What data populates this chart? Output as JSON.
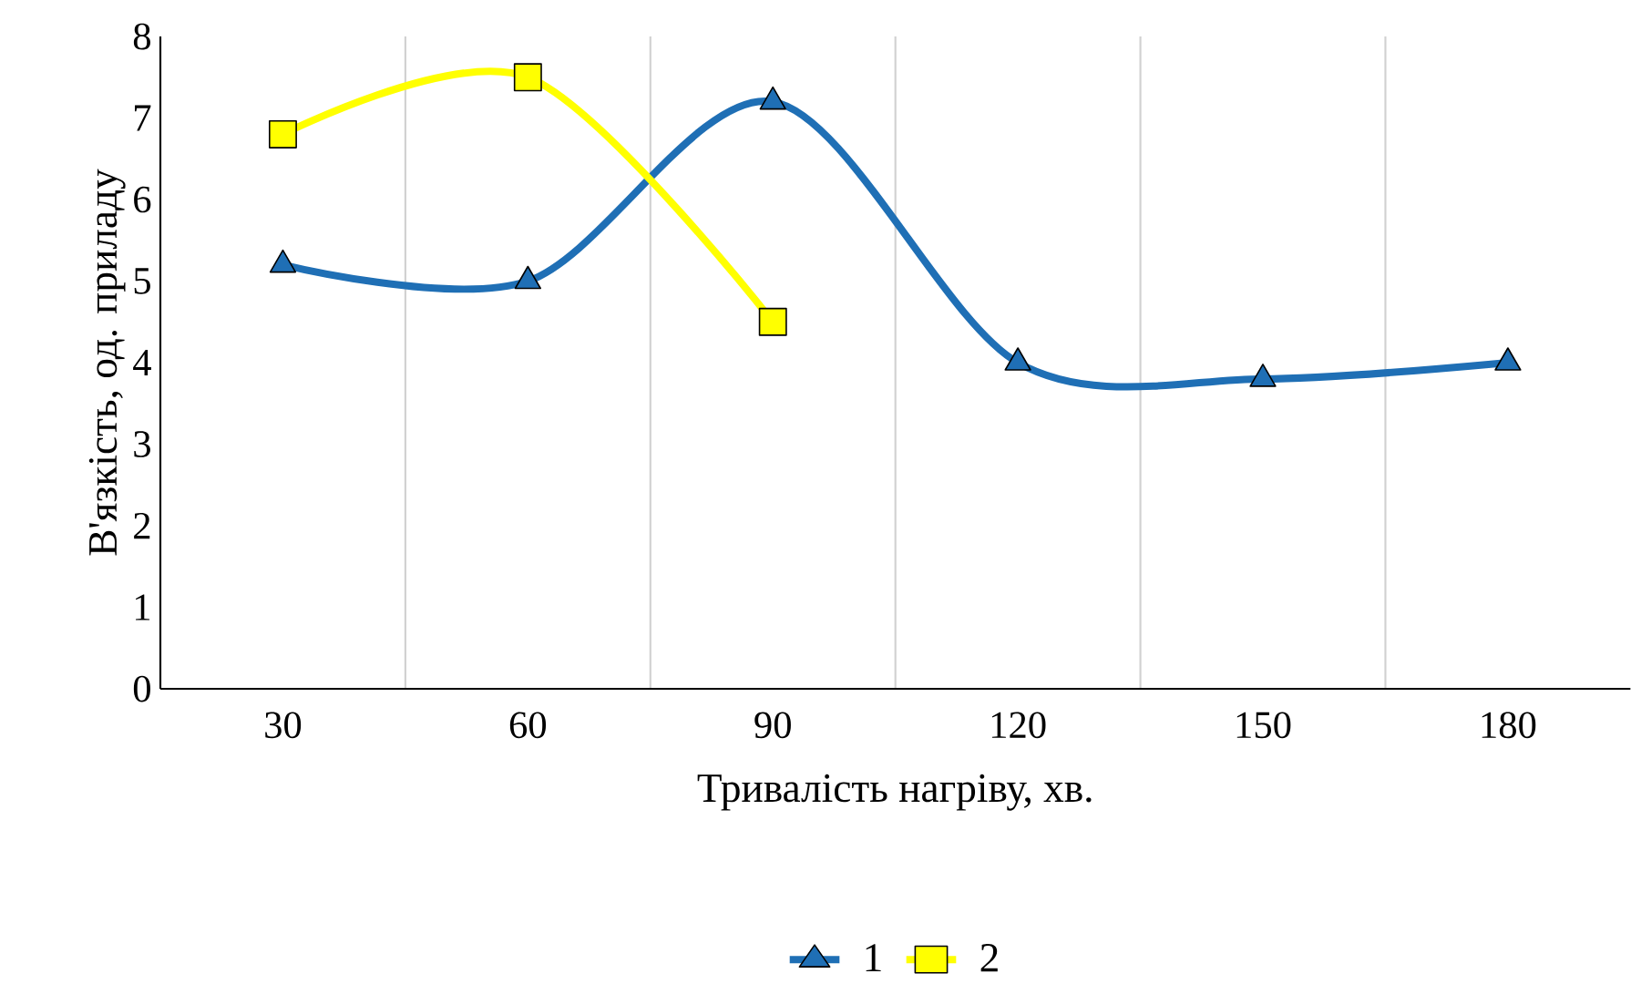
{
  "chart_data": {
    "type": "line",
    "xlabel": "Тривалість нагріву, хв.",
    "ylabel": "В'язкість, од. приладу",
    "categories": [
      "30",
      "60",
      "90",
      "120",
      "150",
      "180"
    ],
    "series": [
      {
        "name": "1",
        "color": "#1f6fb5",
        "marker": "triangle",
        "values": [
          5.2,
          5.0,
          7.2,
          4.0,
          3.8,
          4.0
        ]
      },
      {
        "name": "2",
        "color": "#ffff00",
        "marker": "square",
        "values": [
          6.8,
          7.5,
          4.5,
          null,
          null,
          null
        ]
      }
    ],
    "ylim": [
      0,
      8
    ],
    "yticks": [
      0,
      1,
      2,
      3,
      4,
      5,
      6,
      7,
      8
    ],
    "grid": "x",
    "legend": "bottom"
  }
}
